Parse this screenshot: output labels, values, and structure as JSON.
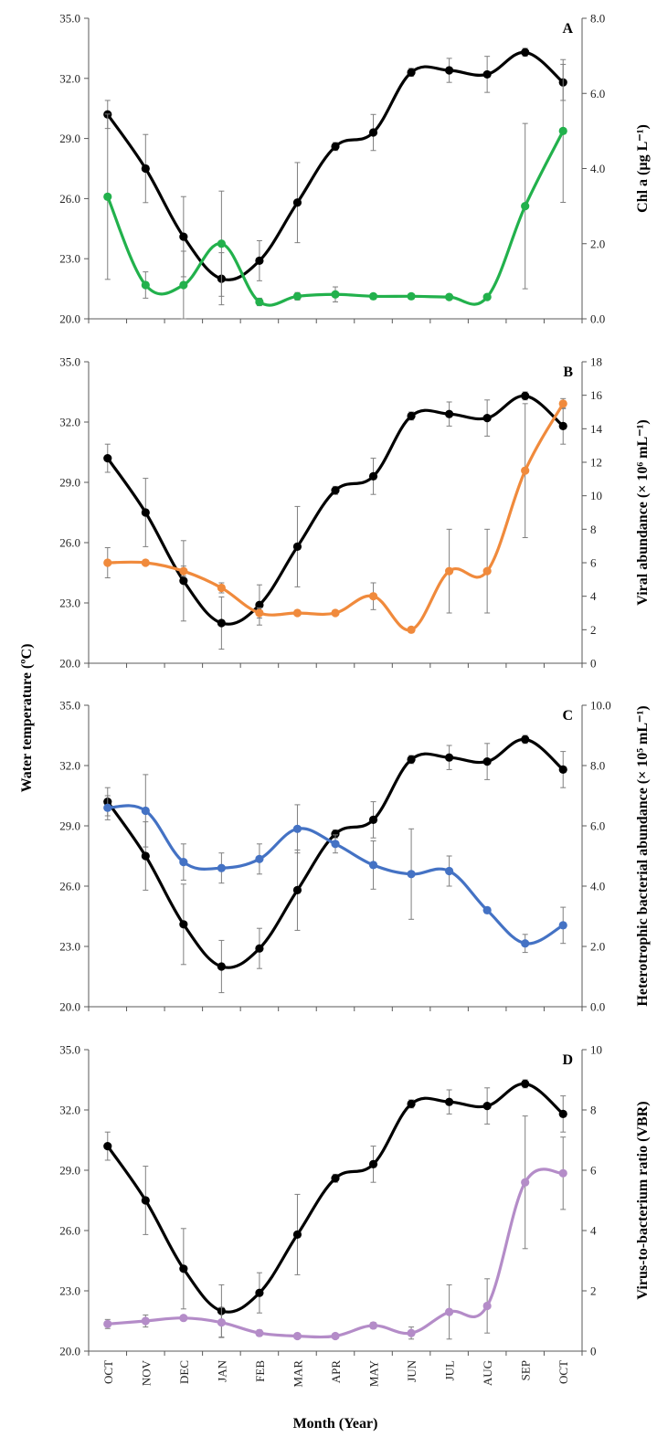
{
  "chart_data": {
    "type": "line",
    "x_categories": [
      "OCT",
      "NOV",
      "DEC",
      "JAN",
      "FEB",
      "MAR",
      "APR",
      "MAY",
      "JUN",
      "JUL",
      "AUG",
      "SEP",
      "OCT"
    ],
    "xlabel": "Month (Year)",
    "ylabel_left": "Water temperature (ºC)",
    "left_axis": {
      "ylim": [
        20.0,
        35.0
      ],
      "ticks": [
        "20.0",
        "23.0",
        "26.0",
        "29.0",
        "32.0",
        "35.0"
      ]
    },
    "temperature": {
      "color": "#000000",
      "values": [
        30.2,
        27.5,
        24.1,
        22.0,
        22.9,
        25.8,
        28.6,
        29.3,
        32.3,
        32.4,
        32.2,
        33.3,
        31.8
      ],
      "errors": [
        0.7,
        1.7,
        2.0,
        1.3,
        1.0,
        2.0,
        0.2,
        0.9,
        0.2,
        0.6,
        0.9,
        0.2,
        0.9
      ]
    },
    "panels": [
      {
        "letter": "A",
        "ylabel": "Chl a (µg L⁻¹)",
        "ylim": [
          0,
          8
        ],
        "ticks": [
          "0.0",
          "2.0",
          "4.0",
          "6.0",
          "8.0"
        ],
        "series_color": "#22b14c",
        "values": [
          3.25,
          0.9,
          0.9,
          2.0,
          0.45,
          0.6,
          0.65,
          0.6,
          0.6,
          0.58,
          0.58,
          3.0,
          5.0
        ],
        "errors": [
          2.2,
          0.35,
          0.9,
          1.4,
          0.1,
          0.1,
          0.2,
          0.07,
          0.07,
          0.07,
          0.07,
          2.2,
          1.9
        ]
      },
      {
        "letter": "B",
        "ylabel": "Viral abundance (× 10⁶ mL⁻¹)",
        "ylim": [
          0,
          18
        ],
        "ticks": [
          "0",
          "2",
          "4",
          "6",
          "8",
          "10",
          "12",
          "14",
          "16",
          "18"
        ],
        "series_color": "#f08a3c",
        "values": [
          6.0,
          6.0,
          5.5,
          4.5,
          3.0,
          3.0,
          3.0,
          4.0,
          2.0,
          5.5,
          5.5,
          11.5,
          15.5
        ],
        "errors": [
          0.9,
          0.1,
          0.3,
          0.3,
          0.3,
          0.1,
          0.1,
          0.8,
          0.1,
          2.5,
          2.5,
          4.0,
          0.3
        ]
      },
      {
        "letter": "C",
        "ylabel": "Heterotrophic bacterial abundance (× 10⁵ mL⁻¹)",
        "ylim": [
          0.0,
          10.0
        ],
        "ticks": [
          "0.0",
          "2.0",
          "4.0",
          "6.0",
          "8.0",
          "10.0"
        ],
        "series_color": "#4472c4",
        "values": [
          6.6,
          6.5,
          4.8,
          4.6,
          4.9,
          5.9,
          5.4,
          4.7,
          4.4,
          4.5,
          3.2,
          2.1,
          2.7
        ],
        "errors": [
          0.4,
          1.2,
          0.6,
          0.5,
          0.5,
          0.8,
          0.3,
          0.8,
          1.5,
          0.5,
          0.1,
          0.3,
          0.6
        ]
      },
      {
        "letter": "D",
        "ylabel": "Virus-to-bacterium ratio (VBR)",
        "ylim": [
          0,
          10
        ],
        "ticks": [
          "0",
          "2",
          "4",
          "6",
          "8",
          "10"
        ],
        "series_color": "#b48cc8",
        "values": [
          0.9,
          1.0,
          1.1,
          0.95,
          0.6,
          0.5,
          0.5,
          0.85,
          0.6,
          1.3,
          1.5,
          5.6,
          5.9
        ],
        "errors": [
          0.15,
          0.2,
          0.05,
          0.5,
          0.1,
          0.05,
          0.05,
          0.1,
          0.2,
          0.9,
          0.9,
          2.2,
          1.2
        ]
      }
    ],
    "grid": false
  }
}
